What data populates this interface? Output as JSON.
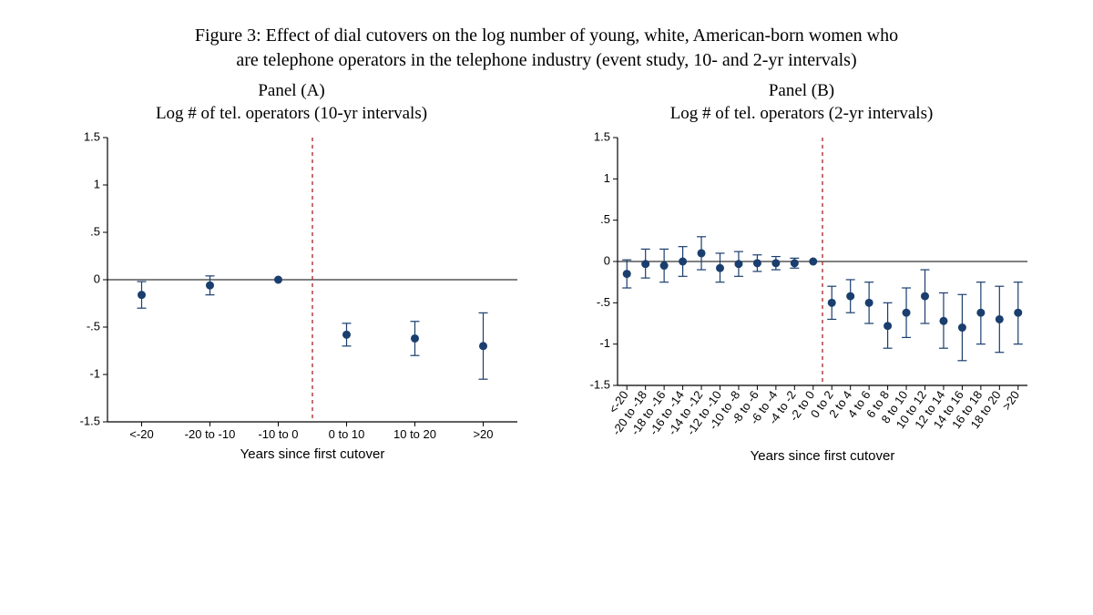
{
  "figure": {
    "caption_line1": "Figure 3: Effect of dial cutovers on the log number of young, white, American-born women who",
    "caption_line2": "are telephone operators in the telephone industry (event study, 10- and 2-yr intervals)"
  },
  "common_style": {
    "background": "#ffffff",
    "point_color": "#1a3e6e",
    "ci_color": "#1a3e6e",
    "ref_line_color": "#b03030",
    "zero_line_color": "#000000",
    "axis_color": "#000000",
    "marker_radius": 4.5,
    "cap_halfwidth": 5,
    "axis_label_font": "Arial",
    "axis_label_fontsize": 15
  },
  "panelA": {
    "title_line1": "Panel (A)",
    "title_line2": "Log # of tel. operators (10-yr intervals)",
    "xlabel": "Years since first cutover",
    "type": "event-study-errorbar",
    "ylim": [
      -1.5,
      1.5
    ],
    "yticks": [
      -1.5,
      -1,
      -0.5,
      0,
      0.5,
      1,
      1.5
    ],
    "ytick_labels": [
      "-1.5",
      "-1",
      "-.5",
      "0",
      ".5",
      "1",
      "1.5"
    ],
    "ref_vline_at_index": 2.5,
    "categories": [
      "<-20",
      "-20 to -10",
      "-10 to 0",
      "0 to 10",
      "10 to 20",
      ">20"
    ],
    "points": [
      {
        "est": -0.16,
        "lo": -0.3,
        "hi": -0.02
      },
      {
        "est": -0.06,
        "lo": -0.16,
        "hi": 0.04
      },
      {
        "est": 0.0,
        "lo": 0.0,
        "hi": 0.0,
        "baseline": true
      },
      {
        "est": -0.58,
        "lo": -0.7,
        "hi": -0.46
      },
      {
        "est": -0.62,
        "lo": -0.8,
        "hi": -0.44
      },
      {
        "est": -0.7,
        "lo": -1.05,
        "hi": -0.35
      }
    ],
    "xtick_fontsize": 13,
    "xtick_rotate": 0
  },
  "panelB": {
    "title_line1": "Panel (B)",
    "title_line2": "Log # of tel. operators (2-yr intervals)",
    "xlabel": "Years since first cutover",
    "type": "event-study-errorbar",
    "ylim": [
      -1.5,
      1.5
    ],
    "yticks": [
      -1.5,
      -1,
      -0.5,
      0,
      0.5,
      1,
      1.5
    ],
    "ytick_labels": [
      "-1.5",
      "-1",
      "-.5",
      "0",
      ".5",
      "1",
      "1.5"
    ],
    "ref_vline_at_index": 10.5,
    "categories": [
      "<-20",
      "-20 to -18",
      "-18 to -16",
      "-16 to -14",
      "-14 to -12",
      "-12 to -10",
      "-10 to -8",
      "-8 to -6",
      "-6 to -4",
      "-4 to -2",
      "-2 to 0",
      "0 to 2",
      "2 to 4",
      "4 to 6",
      "6 to 8",
      "8 to 10",
      "10 to 12",
      "12 to 14",
      "14 to 16",
      "16 to 18",
      "18 to 20",
      ">20"
    ],
    "points": [
      {
        "est": -0.15,
        "lo": -0.32,
        "hi": 0.02
      },
      {
        "est": -0.03,
        "lo": -0.2,
        "hi": 0.15
      },
      {
        "est": -0.05,
        "lo": -0.25,
        "hi": 0.15
      },
      {
        "est": 0.0,
        "lo": -0.18,
        "hi": 0.18
      },
      {
        "est": 0.1,
        "lo": -0.1,
        "hi": 0.3
      },
      {
        "est": -0.08,
        "lo": -0.25,
        "hi": 0.1
      },
      {
        "est": -0.03,
        "lo": -0.18,
        "hi": 0.12
      },
      {
        "est": -0.02,
        "lo": -0.12,
        "hi": 0.08
      },
      {
        "est": -0.02,
        "lo": -0.1,
        "hi": 0.06
      },
      {
        "est": -0.02,
        "lo": -0.08,
        "hi": 0.04
      },
      {
        "est": 0.0,
        "lo": 0.0,
        "hi": 0.0,
        "baseline": true
      },
      {
        "est": -0.5,
        "lo": -0.7,
        "hi": -0.3
      },
      {
        "est": -0.42,
        "lo": -0.62,
        "hi": -0.22
      },
      {
        "est": -0.5,
        "lo": -0.75,
        "hi": -0.25
      },
      {
        "est": -0.78,
        "lo": -1.05,
        "hi": -0.5
      },
      {
        "est": -0.62,
        "lo": -0.92,
        "hi": -0.32
      },
      {
        "est": -0.42,
        "lo": -0.75,
        "hi": -0.1
      },
      {
        "est": -0.72,
        "lo": -1.05,
        "hi": -0.38
      },
      {
        "est": -0.8,
        "lo": -1.2,
        "hi": -0.4
      },
      {
        "est": -0.62,
        "lo": -1.0,
        "hi": -0.25
      },
      {
        "est": -0.7,
        "lo": -1.1,
        "hi": -0.3
      },
      {
        "est": -0.62,
        "lo": -1.0,
        "hi": -0.25
      }
    ],
    "xtick_fontsize": 9,
    "xtick_rotate": -55
  }
}
